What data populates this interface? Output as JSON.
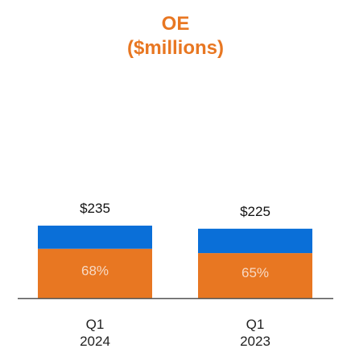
{
  "chart_data": {
    "type": "bar",
    "stacked": true,
    "title": "OE",
    "subtitle": "($millions)",
    "categories": [
      {
        "line1": "Q1",
        "line2": "2024"
      },
      {
        "line1": "Q1",
        "line2": "2023"
      }
    ],
    "totals": [
      235,
      225
    ],
    "total_labels": [
      "$235",
      "$225"
    ],
    "segment_pct_labels": [
      "68%",
      "65%"
    ],
    "series": [
      {
        "values": [
          160,
          146
        ],
        "color": "#e87722"
      },
      {
        "values": [
          75,
          79
        ],
        "color": "#0a6fd8"
      }
    ],
    "legend": "none",
    "grid": false,
    "baseline_color": "#555555"
  }
}
